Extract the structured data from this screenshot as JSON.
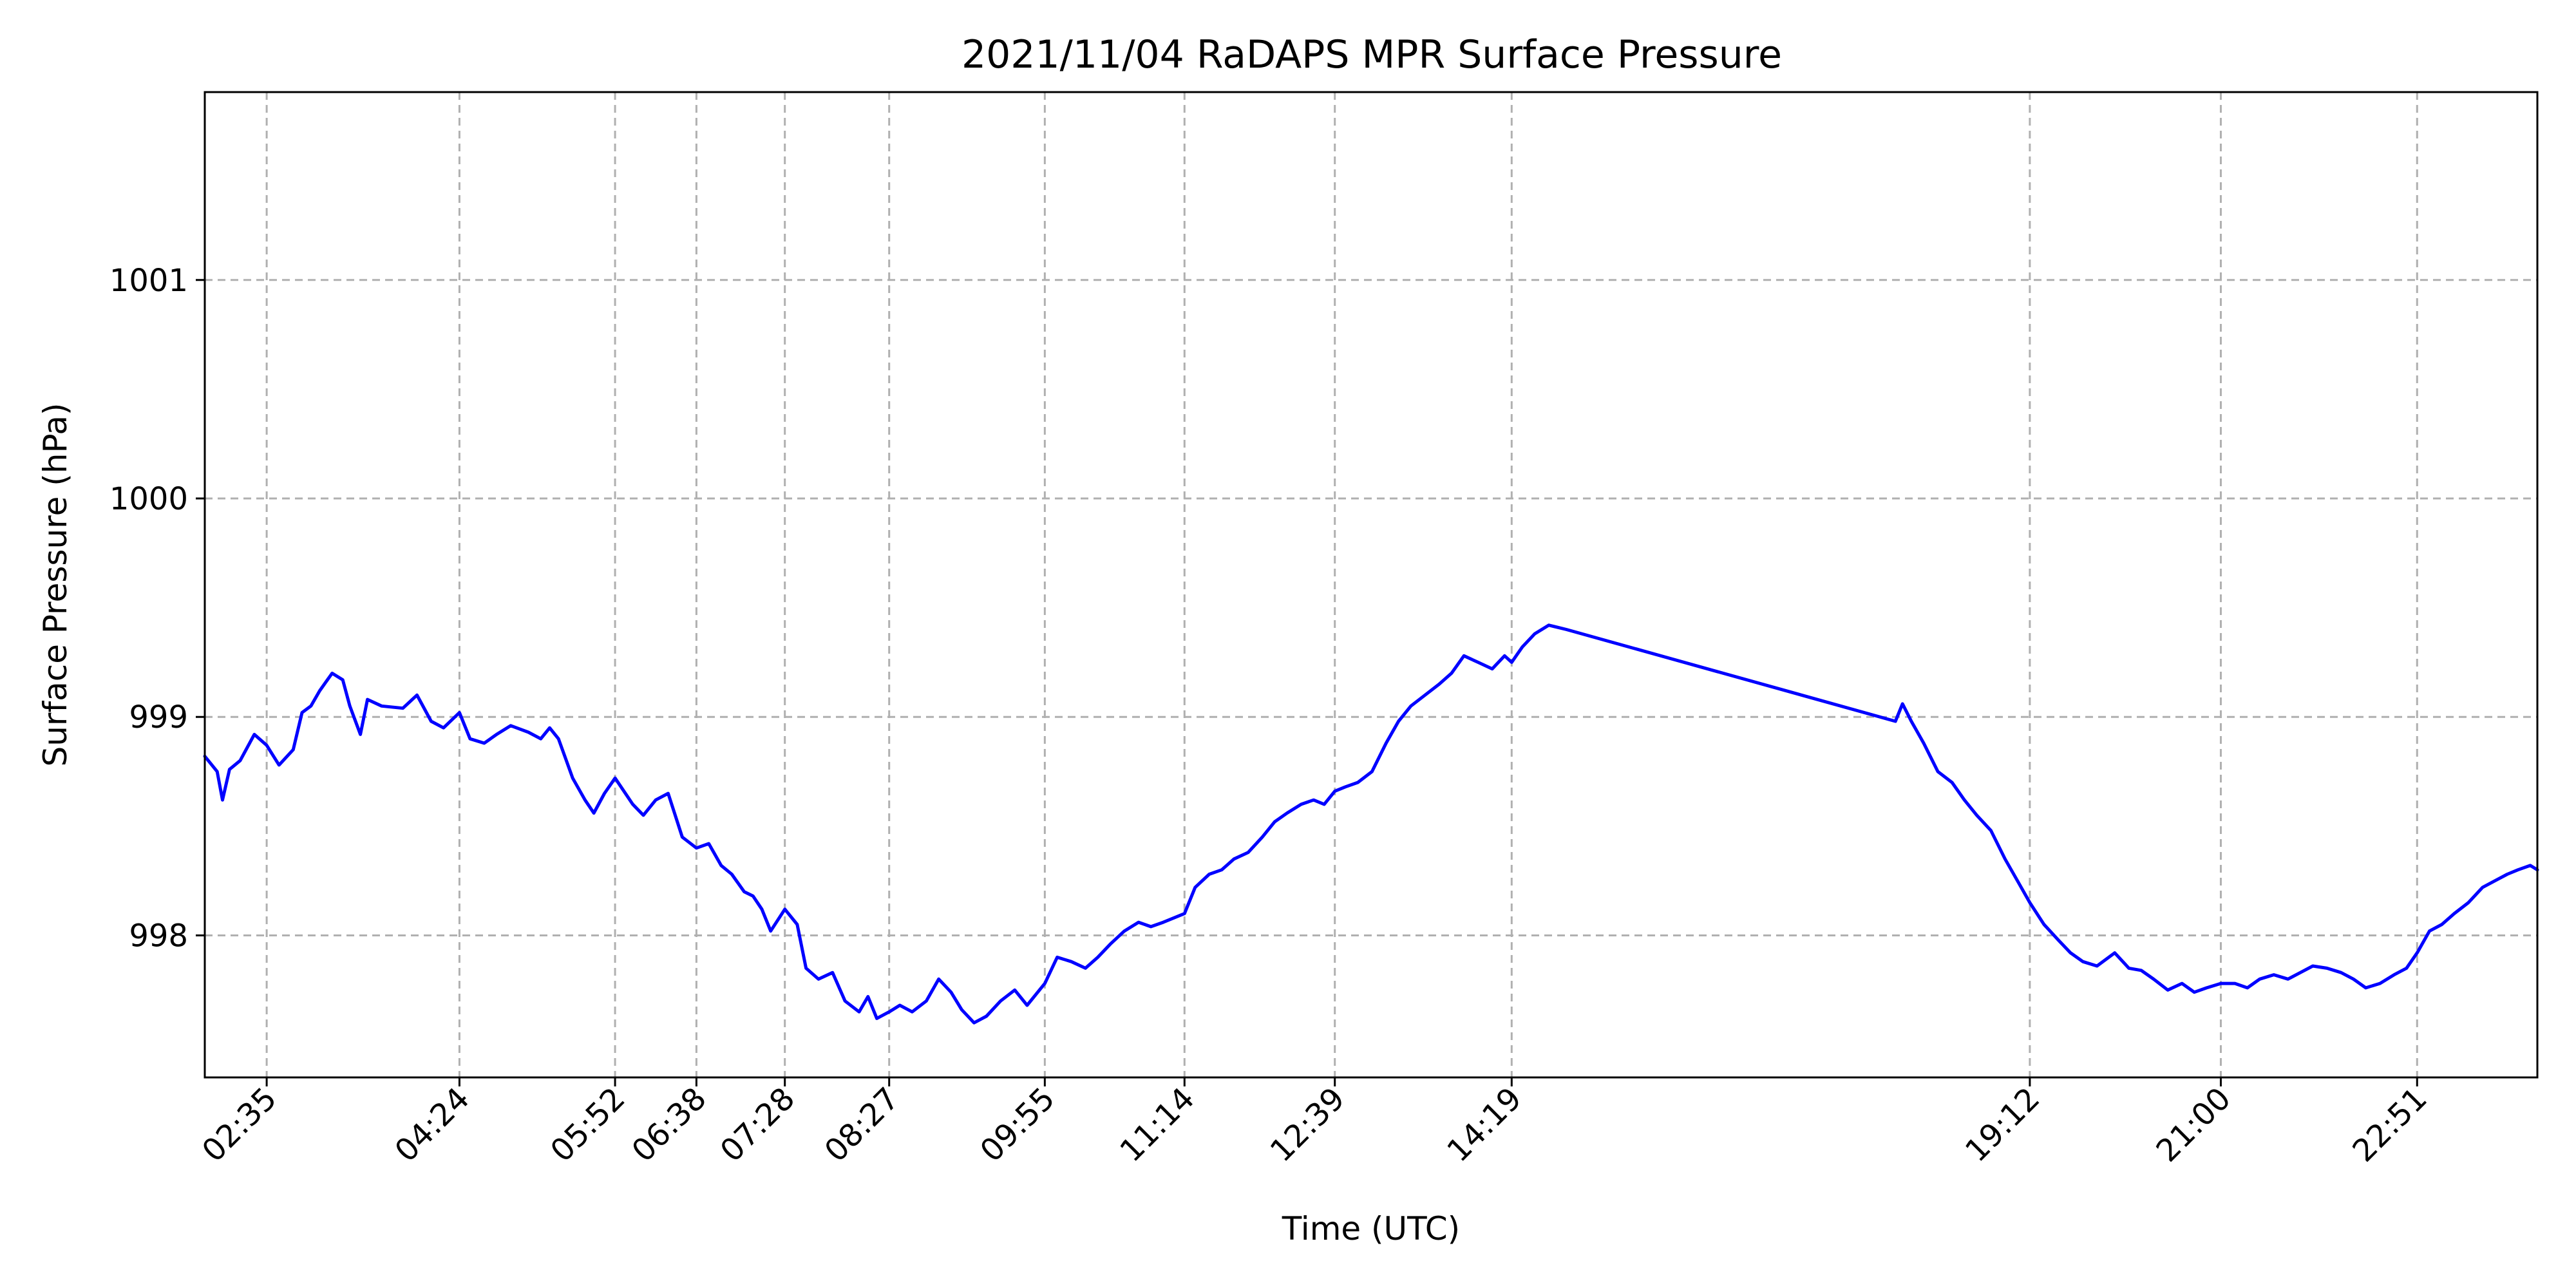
{
  "chart_data": {
    "type": "line",
    "title": "2021/11/04 RaDAPS MPR Surface Pressure",
    "xlabel": "Time (UTC)",
    "ylabel": "Surface Pressure (hPa)",
    "xlim": [
      "02:00",
      "23:59"
    ],
    "ylim": [
      997.35,
      1001.86
    ],
    "grid": true,
    "x_ticks": [
      "02:35",
      "04:24",
      "05:52",
      "06:38",
      "07:28",
      "08:27",
      "09:55",
      "11:14",
      "12:39",
      "14:19",
      "19:12",
      "21:00",
      "22:51"
    ],
    "y_ticks": [
      998,
      999,
      1000,
      1001
    ],
    "series": [
      {
        "color": "#0000ff",
        "x": [
          "02:00",
          "02:07",
          "02:10",
          "02:14",
          "02:20",
          "02:28",
          "02:35",
          "02:42",
          "02:50",
          "02:55",
          "03:00",
          "03:05",
          "03:12",
          "03:18",
          "03:22",
          "03:28",
          "03:32",
          "03:40",
          "03:52",
          "04:00",
          "04:08",
          "04:15",
          "04:24",
          "04:30",
          "04:38",
          "04:45",
          "04:53",
          "05:03",
          "05:10",
          "05:15",
          "05:20",
          "05:28",
          "05:35",
          "05:40",
          "05:46",
          "05:52",
          "06:02",
          "06:08",
          "06:15",
          "06:22",
          "06:30",
          "06:38",
          "06:45",
          "06:52",
          "06:58",
          "07:05",
          "07:10",
          "07:15",
          "07:20",
          "07:28",
          "07:35",
          "07:40",
          "07:47",
          "07:55",
          "08:02",
          "08:10",
          "08:15",
          "08:20",
          "08:27",
          "08:33",
          "08:40",
          "08:48",
          "08:55",
          "09:02",
          "09:08",
          "09:15",
          "09:22",
          "09:30",
          "09:38",
          "09:45",
          "09:55",
          "10:02",
          "10:10",
          "10:18",
          "10:25",
          "10:32",
          "10:40",
          "10:48",
          "10:55",
          "11:02",
          "11:14",
          "11:20",
          "11:28",
          "11:35",
          "11:42",
          "11:50",
          "11:58",
          "12:05",
          "12:12",
          "12:20",
          "12:27",
          "12:33",
          "12:39",
          "12:45",
          "12:52",
          "13:00",
          "13:08",
          "13:15",
          "13:22",
          "13:30",
          "13:38",
          "13:45",
          "13:52",
          "14:00",
          "14:08",
          "14:15",
          "14:19",
          "14:25",
          "14:32",
          "14:40",
          "14:50",
          "17:56",
          "18:00",
          "18:05",
          "18:12",
          "18:20",
          "18:28",
          "18:35",
          "18:42",
          "18:50",
          "18:58",
          "19:05",
          "19:12",
          "19:20",
          "19:28",
          "19:35",
          "19:42",
          "19:50",
          "20:00",
          "20:08",
          "20:15",
          "20:22",
          "20:30",
          "20:38",
          "20:45",
          "20:52",
          "21:00",
          "21:08",
          "21:15",
          "21:22",
          "21:30",
          "21:38",
          "21:45",
          "21:52",
          "22:00",
          "22:08",
          "22:15",
          "22:22",
          "22:30",
          "22:38",
          "22:45",
          "22:51",
          "22:58",
          "23:05",
          "23:12",
          "23:20",
          "23:28",
          "23:35",
          "23:42",
          "23:48",
          "23:55",
          "23:59"
        ],
        "values": [
          998.82,
          998.75,
          998.62,
          998.76,
          998.8,
          998.92,
          998.87,
          998.78,
          998.85,
          999.02,
          999.05,
          999.12,
          999.2,
          999.17,
          999.05,
          998.92,
          999.08,
          999.05,
          999.04,
          999.1,
          998.98,
          998.95,
          999.02,
          998.9,
          998.88,
          998.92,
          998.96,
          998.93,
          998.9,
          998.95,
          998.9,
          998.72,
          998.62,
          998.56,
          998.65,
          998.72,
          998.6,
          998.55,
          998.62,
          998.65,
          998.45,
          998.4,
          998.42,
          998.32,
          998.28,
          998.2,
          998.18,
          998.12,
          998.02,
          998.12,
          998.05,
          997.85,
          997.8,
          997.83,
          997.7,
          997.65,
          997.72,
          997.62,
          997.65,
          997.68,
          997.65,
          997.7,
          997.8,
          997.74,
          997.66,
          997.6,
          997.63,
          997.7,
          997.75,
          997.68,
          997.78,
          997.9,
          997.88,
          997.85,
          997.9,
          997.96,
          998.02,
          998.06,
          998.04,
          998.06,
          998.1,
          998.22,
          998.28,
          998.3,
          998.35,
          998.38,
          998.45,
          998.52,
          998.56,
          998.6,
          998.62,
          998.6,
          998.66,
          998.68,
          998.7,
          998.75,
          998.88,
          998.98,
          999.05,
          999.1,
          999.15,
          999.2,
          999.28,
          999.25,
          999.22,
          999.28,
          999.25,
          999.32,
          999.38,
          999.42,
          999.4,
          998.98,
          999.06,
          998.98,
          998.88,
          998.75,
          998.7,
          998.62,
          998.55,
          998.48,
          998.35,
          998.25,
          998.15,
          998.05,
          997.98,
          997.92,
          997.88,
          997.86,
          997.92,
          997.85,
          997.84,
          997.8,
          997.75,
          997.78,
          997.74,
          997.76,
          997.78,
          997.78,
          997.76,
          997.8,
          997.82,
          997.8,
          997.83,
          997.86,
          997.85,
          997.83,
          997.8,
          997.76,
          997.78,
          997.82,
          997.85,
          997.92,
          998.02,
          998.05,
          998.1,
          998.15,
          998.22,
          998.25,
          998.28,
          998.3,
          998.32,
          998.3
        ]
      }
    ]
  }
}
